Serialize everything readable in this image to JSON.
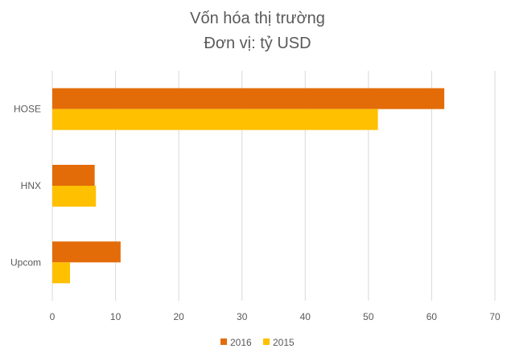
{
  "chart_data": {
    "type": "bar",
    "orientation": "horizontal",
    "title": "Vốn hóa thị trường",
    "subtitle": "Đơn vị: tỷ USD",
    "categories": [
      "HOSE",
      "HNX",
      "Upcom"
    ],
    "series": [
      {
        "name": "2016",
        "color": "#E36C09",
        "values": [
          62,
          6.7,
          10.8
        ]
      },
      {
        "name": "2015",
        "color": "#FFC000",
        "values": [
          51.5,
          6.9,
          2.8
        ]
      }
    ],
    "xlim": [
      0,
      70
    ],
    "x_ticks": [
      "0",
      "10",
      "20",
      "30",
      "40",
      "50",
      "60",
      "70"
    ],
    "grid": true,
    "legend": "bottom"
  }
}
